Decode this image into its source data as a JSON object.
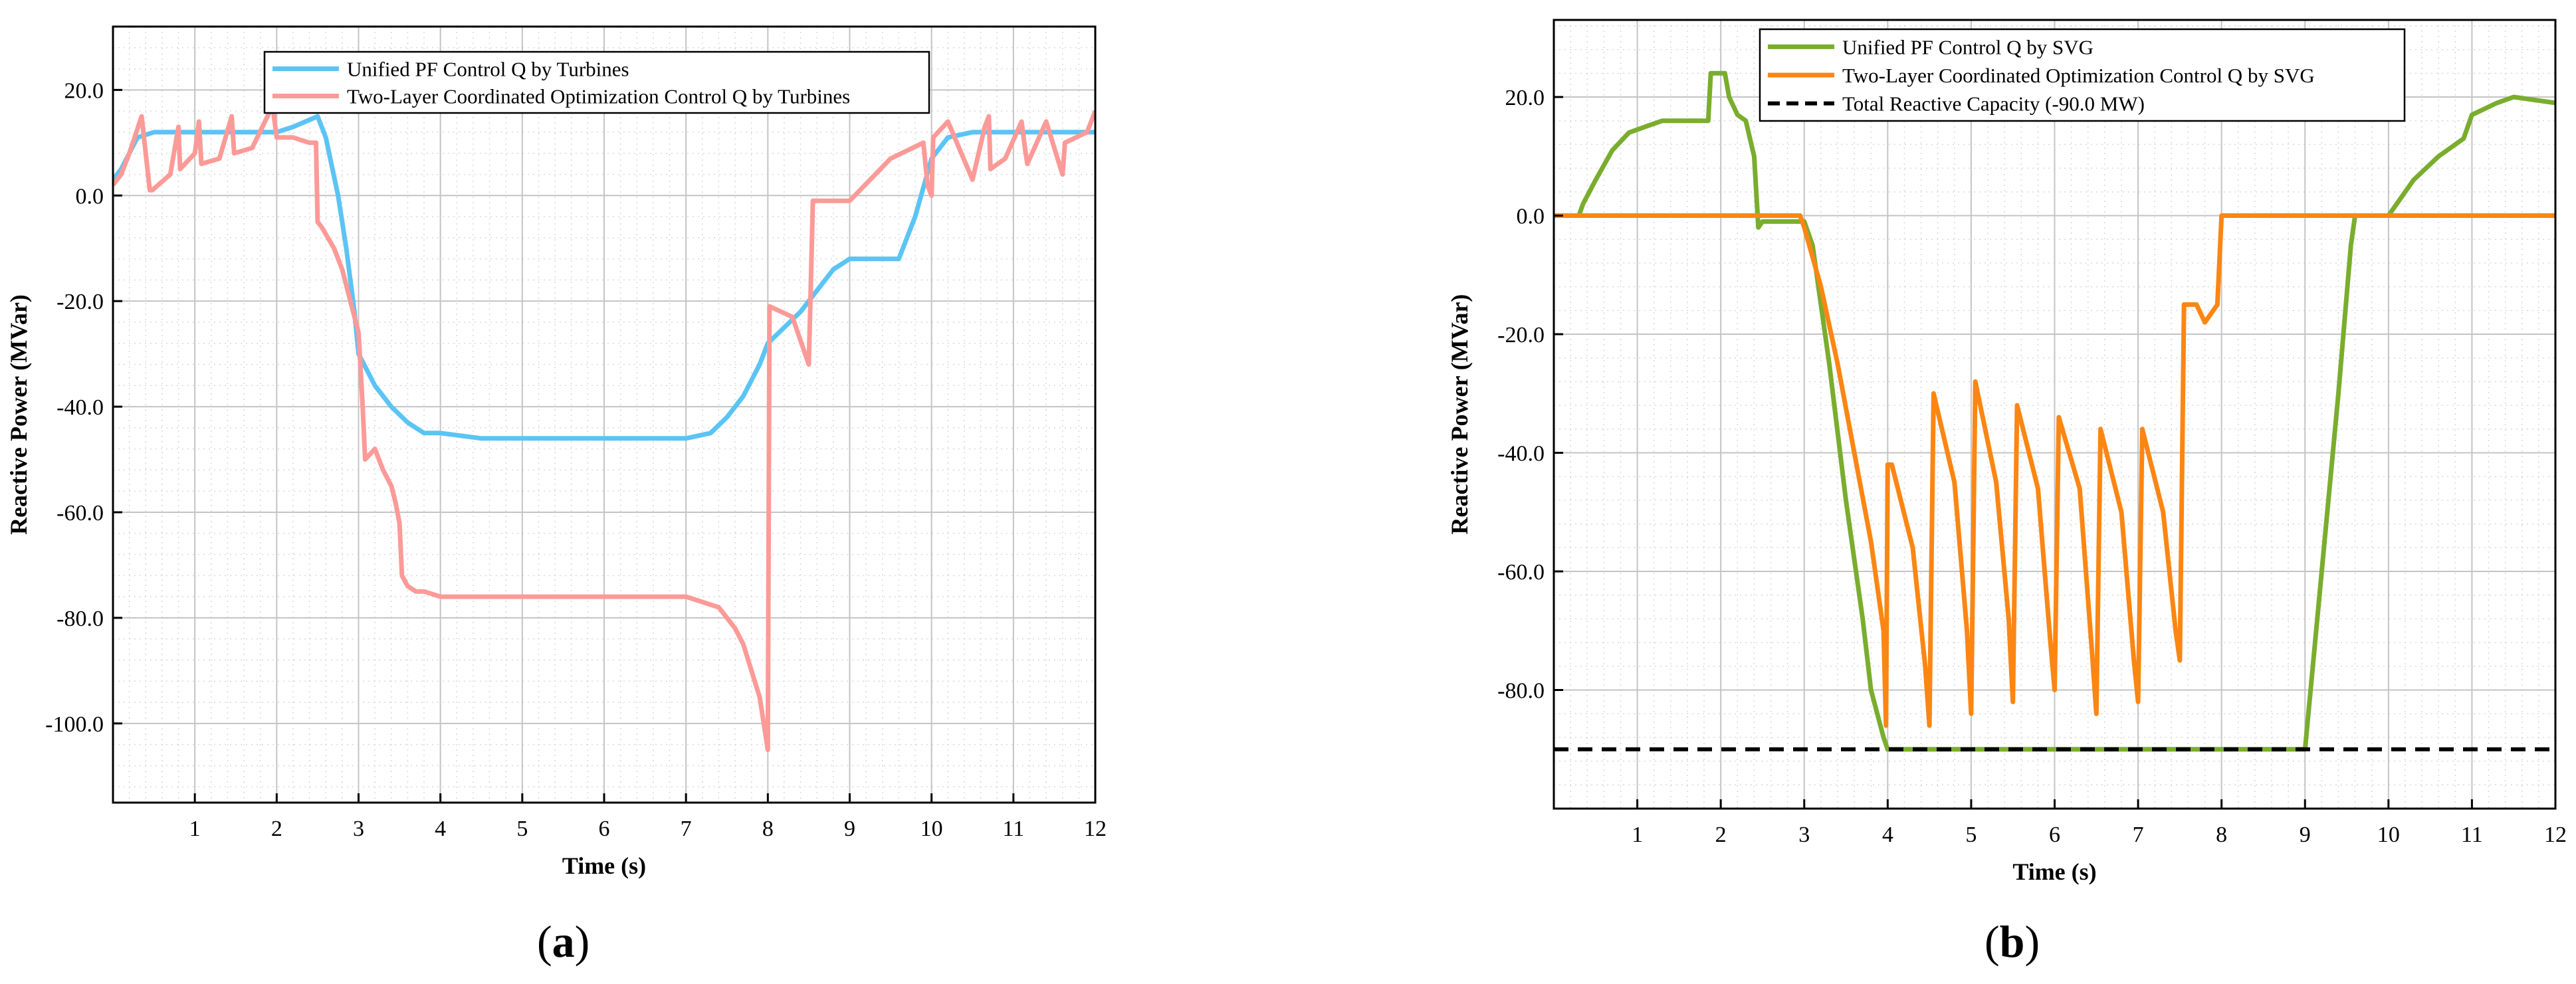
{
  "panels": [
    {
      "label_open": "(",
      "label_letter": "a",
      "label_close": ")"
    },
    {
      "label_open": "(",
      "label_letter": "b",
      "label_close": ")"
    }
  ],
  "chart_data": [
    {
      "type": "line",
      "xlabel": "Time (s)",
      "ylabel": "Reactive Power (MVar)",
      "xlim": [
        0,
        12
      ],
      "ylim": [
        -115,
        32
      ],
      "xticks": [
        1,
        2,
        3,
        4,
        5,
        6,
        7,
        8,
        9,
        10,
        11,
        12
      ],
      "yticks": [
        -100,
        -80,
        -60,
        -40,
        -20,
        0,
        20
      ],
      "ytick_labels": [
        "-100.0",
        "-80.0",
        "-60.0",
        "-40.0",
        "-20.0",
        "0.0",
        "20.0"
      ],
      "grid": true,
      "legend_position": "top-center",
      "series": [
        {
          "name": "Unified PF Control Q by Turbines",
          "color": "#5bc4f5",
          "x": [
            0,
            0.1,
            0.2,
            0.3,
            0.5,
            1.0,
            1.5,
            2.0,
            2.2,
            2.5,
            2.6,
            2.75,
            2.85,
            2.95,
            3.0,
            3.2,
            3.4,
            3.6,
            3.8,
            4.0,
            4.5,
            5.0,
            5.5,
            6.0,
            6.5,
            7.0,
            7.3,
            7.5,
            7.7,
            7.9,
            8.0,
            8.2,
            8.4,
            8.6,
            8.8,
            9.0,
            9.3,
            9.6,
            9.8,
            10.0,
            10.2,
            10.5,
            11.0,
            11.5,
            12.0
          ],
          "y": [
            3,
            5,
            8,
            11,
            12,
            12,
            12,
            12,
            13,
            15,
            11,
            0,
            -10,
            -22,
            -30,
            -36,
            -40,
            -43,
            -45,
            -45,
            -46,
            -46,
            -46,
            -46,
            -46,
            -46,
            -45,
            -42,
            -38,
            -32,
            -28,
            -25,
            -22,
            -18,
            -14,
            -12,
            -12,
            -12,
            -4,
            7,
            11,
            12,
            12,
            12,
            12
          ]
        },
        {
          "name": "Two-Layer Coordinated Optimization Control Q by Turbines",
          "color": "#fc9a98",
          "x": [
            0,
            0.1,
            0.2,
            0.35,
            0.45,
            0.48,
            0.7,
            0.8,
            0.82,
            1.0,
            1.05,
            1.08,
            1.3,
            1.45,
            1.48,
            1.7,
            1.95,
            2.0,
            2.2,
            2.4,
            2.48,
            2.5,
            2.55,
            2.7,
            2.8,
            2.9,
            3.0,
            3.05,
            3.08,
            3.2,
            3.3,
            3.4,
            3.45,
            3.5,
            3.53,
            3.6,
            3.7,
            3.8,
            4.0,
            4.5,
            5.0,
            5.5,
            6.0,
            6.5,
            7.0,
            7.4,
            7.5,
            7.6,
            7.7,
            7.8,
            7.9,
            7.95,
            8.0,
            8.02,
            8.3,
            8.5,
            8.52,
            8.55,
            8.6,
            9.0,
            9.5,
            9.9,
            9.95,
            10.0,
            10.02,
            10.2,
            10.5,
            10.65,
            10.7,
            10.72,
            10.9,
            11.1,
            11.15,
            11.17,
            11.4,
            11.6,
            11.63,
            11.9,
            12.0
          ],
          "y": [
            2,
            4,
            8,
            15,
            1,
            1,
            4,
            13,
            5,
            8,
            14,
            6,
            7,
            15,
            8,
            9,
            17,
            11,
            11,
            10,
            10,
            -5,
            -6,
            -10,
            -14,
            -20,
            -26,
            -40,
            -50,
            -48,
            -52,
            -55,
            -58,
            -62,
            -72,
            -74,
            -75,
            -75,
            -76,
            -76,
            -76,
            -76,
            -76,
            -76,
            -76,
            -78,
            -80,
            -82,
            -85,
            -90,
            -95,
            -100,
            -105,
            -21,
            -23,
            -32,
            -20,
            -1,
            -1,
            -1,
            7,
            10,
            2,
            0,
            11,
            14,
            3,
            13,
            15,
            5,
            7,
            14,
            8,
            6,
            14,
            4,
            10,
            12,
            16
          ]
        }
      ]
    },
    {
      "type": "line",
      "xlabel": "Time (s)",
      "ylabel": "Reactive Power (MVar)",
      "xlim": [
        0,
        12
      ],
      "ylim": [
        -100,
        33
      ],
      "xticks": [
        1,
        2,
        3,
        4,
        5,
        6,
        7,
        8,
        9,
        10,
        11,
        12
      ],
      "yticks": [
        -80,
        -60,
        -40,
        -20,
        0,
        20
      ],
      "ytick_labels": [
        "-80.0",
        "-60.0",
        "-40.0",
        "-20.0",
        "0.0",
        "20.0"
      ],
      "grid": true,
      "legend_position": "top-center",
      "series": [
        {
          "name": "Unified PF Control Q by SVG",
          "color": "#7aad2e",
          "x": [
            0.3,
            0.35,
            0.5,
            0.7,
            0.9,
            1.1,
            1.3,
            1.5,
            1.85,
            1.88,
            2.05,
            2.1,
            2.2,
            2.3,
            2.4,
            2.45,
            2.5,
            2.6,
            2.95,
            3.0,
            3.1,
            3.3,
            3.5,
            3.7,
            3.8,
            3.95,
            4.0,
            9.0,
            9.2,
            9.4,
            9.55,
            9.6,
            10.0,
            10.1,
            10.3,
            10.6,
            10.9,
            11.0,
            11.3,
            11.5,
            12.0
          ],
          "y": [
            0,
            2,
            6,
            11,
            14,
            15,
            16,
            16,
            16,
            24,
            24,
            20,
            17,
            16,
            10,
            -2,
            -1,
            -1,
            -1,
            -1,
            -5,
            -25,
            -48,
            -68,
            -80,
            -88,
            -90,
            -90,
            -60,
            -30,
            -5,
            0,
            0,
            2,
            6,
            10,
            13,
            17,
            19,
            20,
            19
          ]
        },
        {
          "name": "Two-Layer Coordinated Optimization Control Q by SVG",
          "color": "#fb8613",
          "x": [
            0,
            2.95,
            3.0,
            3.2,
            3.4,
            3.6,
            3.8,
            3.95,
            3.98,
            4.0,
            4.05,
            4.3,
            4.45,
            4.5,
            4.55,
            4.8,
            4.95,
            5.0,
            5.05,
            5.3,
            5.45,
            5.5,
            5.55,
            5.8,
            5.95,
            6.0,
            6.05,
            6.3,
            6.45,
            6.5,
            6.55,
            6.8,
            6.95,
            7.0,
            7.05,
            7.3,
            7.45,
            7.5,
            7.55,
            7.7,
            7.8,
            7.95,
            8.0,
            12.0
          ],
          "y": [
            0,
            0,
            -2,
            -12,
            -25,
            -40,
            -55,
            -70,
            -86,
            -42,
            -42,
            -56,
            -76,
            -86,
            -30,
            -45,
            -70,
            -84,
            -28,
            -45,
            -68,
            -82,
            -32,
            -46,
            -72,
            -80,
            -34,
            -46,
            -74,
            -84,
            -36,
            -50,
            -75,
            -82,
            -36,
            -50,
            -70,
            -75,
            -15,
            -15,
            -18,
            -15,
            0,
            0
          ]
        },
        {
          "name": "Total Reactive Capacity (-90.0 MW)",
          "color": "#000000",
          "dashed": true,
          "x": [
            0,
            12
          ],
          "y": [
            -90,
            -90
          ]
        }
      ]
    }
  ]
}
